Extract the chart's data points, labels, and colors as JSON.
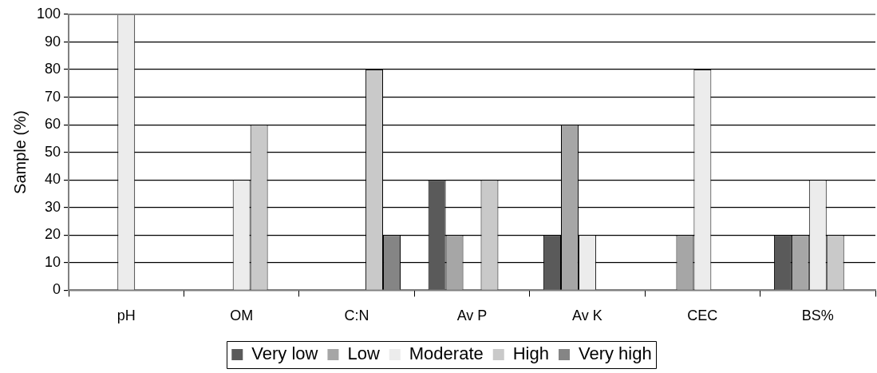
{
  "chart_data": {
    "type": "bar",
    "ylabel": "Sample (%)",
    "categories": [
      "pH",
      "OM",
      "C:N",
      "Av P",
      "Av K",
      "CEC",
      "BS%"
    ],
    "series": [
      {
        "name": "Very low",
        "color": "#5a5a5a",
        "values": [
          0,
          0,
          0,
          40,
          20,
          0,
          20
        ]
      },
      {
        "name": "Low",
        "color": "#a6a6a6",
        "values": [
          0,
          0,
          0,
          20,
          60,
          20,
          20
        ]
      },
      {
        "name": "Moderate",
        "color": "#ececec",
        "values": [
          100,
          40,
          0,
          0,
          20,
          80,
          40
        ]
      },
      {
        "name": "High",
        "color": "#c9c9c9",
        "values": [
          0,
          60,
          80,
          40,
          0,
          0,
          20
        ]
      },
      {
        "name": "Very high",
        "color": "#858585",
        "values": [
          0,
          0,
          20,
          0,
          0,
          0,
          0
        ]
      }
    ],
    "ylim": [
      0,
      100
    ],
    "yticks": [
      0,
      10,
      20,
      30,
      40,
      50,
      60,
      70,
      80,
      90,
      100
    ],
    "grid": "y",
    "legend": "bottom"
  }
}
